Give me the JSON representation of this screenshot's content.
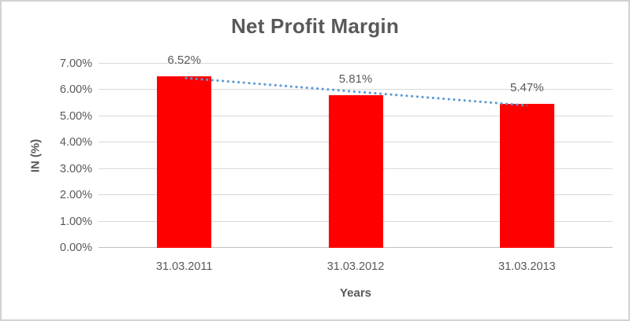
{
  "chart_data": {
    "type": "bar",
    "title": "Net Profit Margin",
    "categories": [
      "31.03.2011",
      "31.03.2012",
      "31.03.2013"
    ],
    "values": [
      6.52,
      5.81,
      5.47
    ],
    "data_labels": [
      "6.52%",
      "5.81%",
      "5.47%"
    ],
    "xlabel": "Years",
    "ylabel": "IN (%)",
    "ylim": [
      0,
      7
    ],
    "yticks": [
      "0.00%",
      "1.00%",
      "2.00%",
      "3.00%",
      "4.00%",
      "5.00%",
      "6.00%",
      "7.00%"
    ],
    "grid": true,
    "legend": "none",
    "bar_color": "#ff0000",
    "trendline": {
      "type": "linear",
      "style": "dotted",
      "color": "#5b9bd5"
    },
    "text_color": "#595959",
    "gridline_color": "#d9d9d9",
    "axisline_color": "#bfbfbf"
  }
}
